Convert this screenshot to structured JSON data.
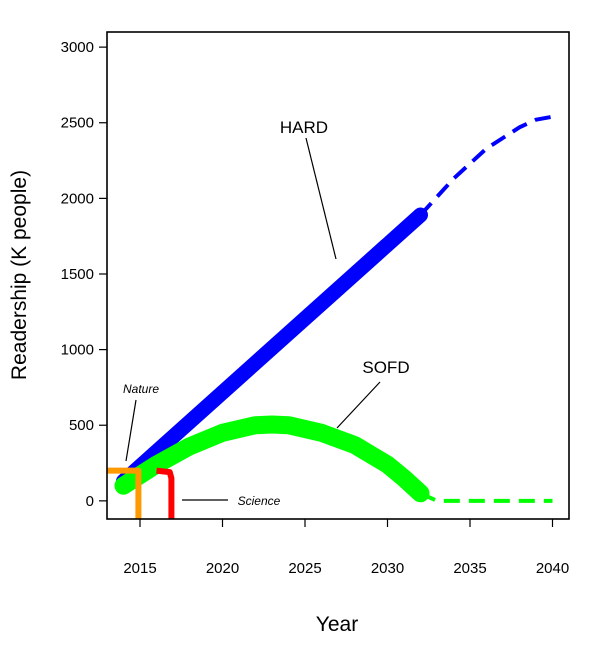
{
  "chart_data": {
    "type": "line",
    "title": "",
    "xlabel": "Year",
    "ylabel": "Readership (K people)",
    "xlim": [
      2013,
      2041
    ],
    "ylim": [
      -120,
      3100
    ],
    "xticks": [
      "2015",
      "2020",
      "2025",
      "2030",
      "2035",
      "2040"
    ],
    "yticks": [
      "0",
      "500",
      "1000",
      "1500",
      "2000",
      "2500",
      "3000"
    ],
    "grid": false,
    "legend": "none",
    "series": [
      {
        "name": "HARD",
        "color": "#0000ff",
        "solid": {
          "x": [
            2014,
            2032
          ],
          "y": [
            130,
            1890
          ]
        },
        "dashed": {
          "x": [
            2032,
            2034,
            2036,
            2038,
            2039,
            2040
          ],
          "y": [
            1890,
            2130,
            2330,
            2470,
            2520,
            2540
          ]
        }
      },
      {
        "name": "SOFD",
        "color": "#00ff00",
        "solid": {
          "x": [
            2014,
            2016,
            2018,
            2020,
            2022,
            2023,
            2024,
            2026,
            2028,
            2030,
            2031,
            2032
          ],
          "y": [
            100,
            240,
            360,
            450,
            500,
            505,
            500,
            450,
            370,
            240,
            150,
            50
          ]
        },
        "dashed": {
          "x": [
            2032,
            2033,
            2040
          ],
          "y": [
            50,
            0,
            0
          ]
        }
      },
      {
        "name": "Nature",
        "color": "#ff9900",
        "solid": {
          "x": [
            2013,
            2014.9,
            2014.9
          ],
          "y": [
            200,
            200,
            -120
          ]
        }
      },
      {
        "name": "Science",
        "color": "#ff0000",
        "solid": {
          "x": [
            2016,
            2016.8,
            2016.9,
            2016.9
          ],
          "y": [
            200,
            190,
            150,
            -120
          ]
        }
      }
    ],
    "annotations": [
      {
        "text": "HARD",
        "style": "big",
        "points_to": [
          2026.2,
          1580
        ]
      },
      {
        "text": "SOFD",
        "style": "big",
        "points_to": [
          2027.2,
          500
        ]
      },
      {
        "text": "Nature",
        "style": "small",
        "points_to": [
          2013.9,
          260
        ]
      },
      {
        "text": "Science",
        "style": "small",
        "points_to": [
          2017.4,
          0
        ]
      }
    ]
  }
}
